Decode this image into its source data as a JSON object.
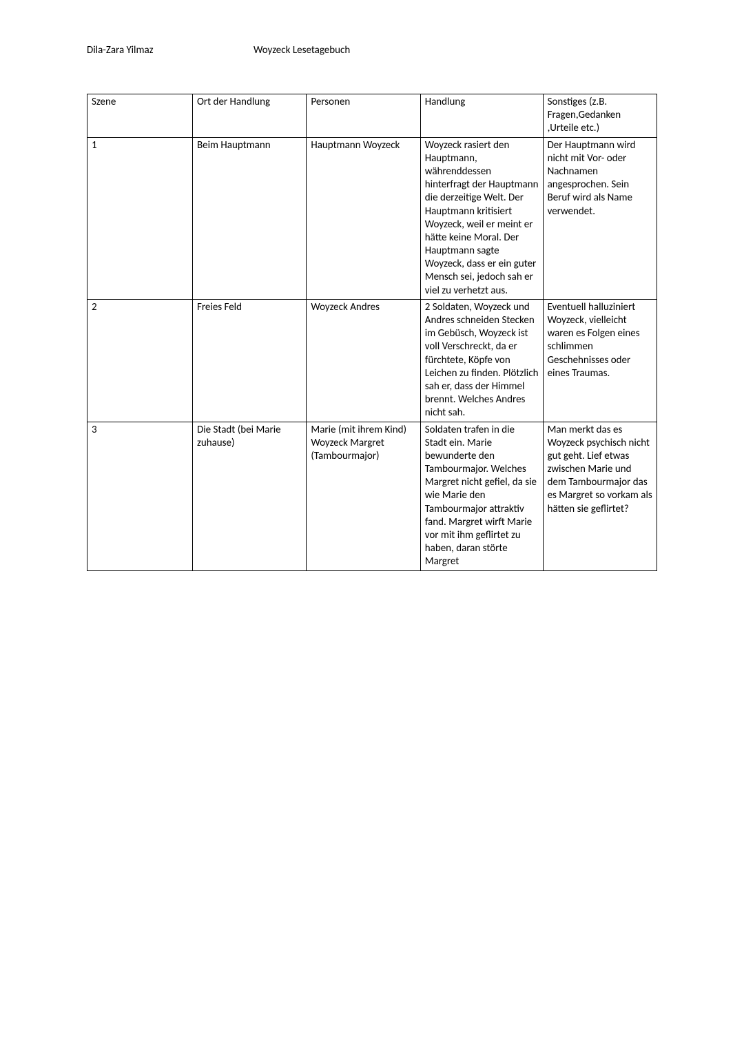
{
  "header": {
    "author": "Dila-Zara Yilmaz",
    "title": "Woyzeck Lesetagebuch"
  },
  "table": {
    "columns": [
      "Szene",
      "Ort der Handlung",
      "Personen",
      "Handlung",
      "Sonstiges (z.B. Fragen,Gedanken ,Urteile etc.)"
    ],
    "rows": [
      {
        "szene": "1",
        "ort": "Beim Hauptmann",
        "personen": "Hauptmann Woyzeck",
        "handlung": "Woyzeck rasiert den Hauptmann, währenddessen hinterfragt der Hauptmann die derzeitige Welt. Der Hauptmann kritisiert Woyzeck, weil er meint er hätte keine Moral. Der Hauptmann sagte Woyzeck, dass er ein guter Mensch sei, jedoch sah er viel zu verhetzt aus.",
        "sonstiges": "Der Hauptmann wird nicht mit Vor- oder Nachnamen angesprochen. Sein Beruf wird als Name verwendet."
      },
      {
        "szene": "2",
        "ort": "Freies Feld",
        "personen": "Woyzeck Andres",
        "handlung": "2 Soldaten, Woyzeck und Andres schneiden Stecken im Gebüsch, Woyzeck ist voll Verschreckt, da er fürchtete, Köpfe von Leichen zu finden. Plötzlich sah er, dass der Himmel brennt. Welches Andres nicht sah.",
        "sonstiges": "Eventuell halluziniert Woyzeck, vielleicht waren es Folgen eines schlimmen Geschehnisses oder eines Traumas."
      },
      {
        "szene": "3",
        "ort": "Die Stadt (bei Marie zuhause)",
        "personen": "Marie (mit ihrem Kind) Woyzeck Margret (Tambourmajor)",
        "handlung": "Soldaten trafen in die Stadt ein. Marie bewunderte den Tambourmajor. Welches Margret nicht gefiel, da sie wie Marie den Tambourmajor attraktiv fand. Margret wirft Marie vor mit ihm geflirtet zu haben, daran störte Margret",
        "sonstiges": "Man merkt das es Woyzeck psychisch nicht gut geht. Lief etwas zwischen Marie und dem Tambourmajor das es Margret so vorkam als hätten sie geflirtet?"
      }
    ]
  }
}
